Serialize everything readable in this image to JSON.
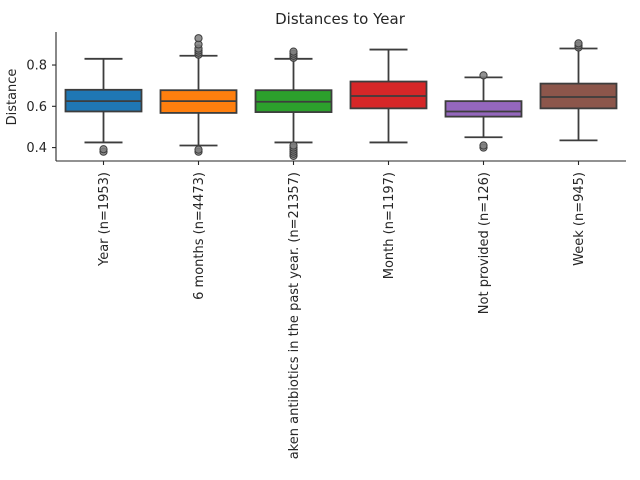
{
  "chart_data": {
    "type": "box",
    "title": "Distances to Year",
    "xlabel": "",
    "ylabel": "Distance",
    "ylim": [
      0.335,
      0.96
    ],
    "yticks": [
      "0.4",
      "0.6",
      "0.8"
    ],
    "ytick_values": [
      0.4,
      0.6,
      0.8
    ],
    "grid": false,
    "categories": [
      "Year (n=1953)",
      "6 months (n=4473)",
      "aken antibiotics in the past year. (n=21357)",
      "Month (n=1197)",
      "Not provided (n=126)",
      "Week (n=945)"
    ],
    "boxes": [
      {
        "whisker_low": 0.425,
        "q1": 0.575,
        "median": 0.625,
        "q3": 0.68,
        "whisker_high": 0.83,
        "color": "#1f77b4",
        "fliers": [
          0.38,
          0.392
        ]
      },
      {
        "whisker_low": 0.41,
        "q1": 0.568,
        "median": 0.625,
        "q3": 0.678,
        "whisker_high": 0.845,
        "color": "#ff7f0e",
        "fliers": [
          0.38,
          0.39,
          0.85,
          0.86,
          0.87,
          0.88,
          0.9,
          0.93
        ]
      },
      {
        "whisker_low": 0.425,
        "q1": 0.572,
        "median": 0.622,
        "q3": 0.678,
        "whisker_high": 0.83,
        "color": "#2ca02c",
        "fliers": [
          0.36,
          0.37,
          0.38,
          0.39,
          0.4,
          0.41,
          0.835,
          0.845,
          0.855,
          0.865
        ]
      },
      {
        "whisker_low": 0.425,
        "q1": 0.59,
        "median": 0.65,
        "q3": 0.72,
        "whisker_high": 0.875,
        "color": "#d62728",
        "fliers": []
      },
      {
        "whisker_low": 0.45,
        "q1": 0.55,
        "median": 0.575,
        "q3": 0.625,
        "whisker_high": 0.74,
        "color": "#9467bd",
        "fliers": [
          0.4,
          0.41,
          0.75
        ]
      },
      {
        "whisker_low": 0.435,
        "q1": 0.59,
        "median": 0.645,
        "q3": 0.71,
        "whisker_high": 0.88,
        "color": "#8c564b",
        "fliers": [
          0.885,
          0.895,
          0.905
        ]
      }
    ]
  }
}
